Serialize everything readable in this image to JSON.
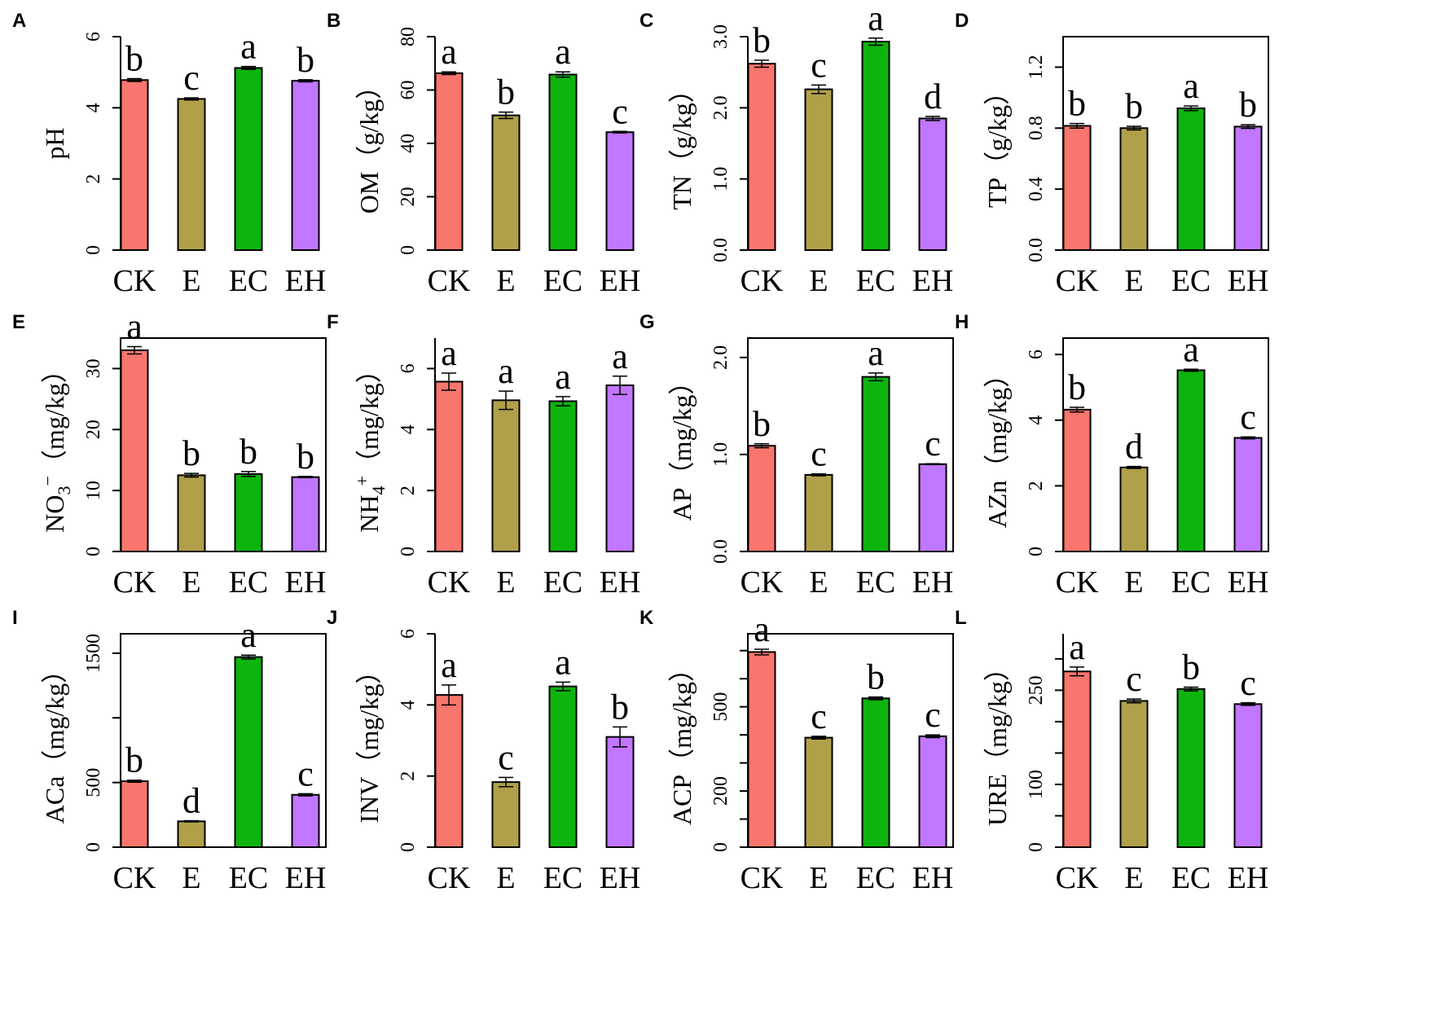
{
  "chart_data": [
    {
      "panel": "A",
      "type": "bar",
      "ylabel": "pH",
      "categories": [
        "CK",
        "E",
        "EC",
        "EH"
      ],
      "values": [
        4.78,
        4.25,
        5.12,
        4.76
      ],
      "errors": [
        0.04,
        0.03,
        0.04,
        0.03
      ],
      "sig": [
        "b",
        "c",
        "a",
        "b"
      ],
      "ylim": [
        0,
        6
      ],
      "yticks": [
        "0",
        "2",
        "4",
        "6"
      ],
      "tick_values": [
        0,
        2,
        4,
        6
      ]
    },
    {
      "panel": "B",
      "type": "bar",
      "ylabel": "OM（g/kg）",
      "categories": [
        "CK",
        "E",
        "EC",
        "EH"
      ],
      "values": [
        66.3,
        50.5,
        65.8,
        44.2
      ],
      "errors": [
        0.5,
        1.2,
        1.0,
        0.3
      ],
      "sig": [
        "a",
        "b",
        "a",
        "c"
      ],
      "ylim": [
        0,
        80
      ],
      "yticks": [
        "0",
        "20",
        "40",
        "60",
        "80"
      ],
      "tick_values": [
        0,
        20,
        40,
        60,
        80
      ]
    },
    {
      "panel": "C",
      "type": "bar",
      "ylabel": "TN（g/kg）",
      "categories": [
        "CK",
        "E",
        "EC",
        "EH"
      ],
      "values": [
        2.62,
        2.26,
        2.93,
        1.85
      ],
      "errors": [
        0.05,
        0.06,
        0.05,
        0.03
      ],
      "sig": [
        "b",
        "c",
        "a",
        "d"
      ],
      "ylim": [
        0,
        3.0
      ],
      "yticks": [
        "0.0",
        "1.0",
        "2.0",
        "3.0"
      ],
      "tick_values": [
        0,
        1,
        2,
        3
      ]
    },
    {
      "panel": "D",
      "type": "bar",
      "ylabel": "TP（g/kg）",
      "categories": [
        "CK",
        "E",
        "EC",
        "EH"
      ],
      "values": [
        0.815,
        0.8,
        0.93,
        0.81
      ],
      "errors": [
        0.015,
        0.012,
        0.015,
        0.012
      ],
      "sig": [
        "b",
        "b",
        "a",
        "b"
      ],
      "ylim": [
        0,
        1.4
      ],
      "yticks": [
        "0.0",
        "0.4",
        "0.8",
        "1.2"
      ],
      "tick_values": [
        0,
        0.4,
        0.8,
        1.2
      ]
    },
    {
      "panel": "E",
      "type": "bar",
      "ylabel": "NO3−（mg/kg）",
      "ylabel_main": "NO",
      "ylabel_sub": "3",
      "ylabel_sup": "−",
      "ylabel_unit": "（mg/kg）",
      "categories": [
        "CK",
        "E",
        "EC",
        "EH"
      ],
      "values": [
        33.0,
        12.5,
        12.7,
        12.2
      ],
      "errors": [
        0.6,
        0.3,
        0.4,
        0.1
      ],
      "sig": [
        "a",
        "b",
        "b",
        "b"
      ],
      "ylim": [
        0,
        35
      ],
      "yticks": [
        "0",
        "10",
        "20",
        "30"
      ],
      "tick_values": [
        0,
        10,
        20,
        30
      ]
    },
    {
      "panel": "F",
      "type": "bar",
      "ylabel": "NH4+（mg/kg）",
      "ylabel_main": "NH",
      "ylabel_sub": "4",
      "ylabel_sup": "+",
      "ylabel_unit": "（mg/kg）",
      "categories": [
        "CK",
        "E",
        "EC",
        "EH"
      ],
      "values": [
        5.57,
        4.96,
        4.93,
        5.45
      ],
      "errors": [
        0.28,
        0.3,
        0.15,
        0.3
      ],
      "sig": [
        "a",
        "a",
        "a",
        "a"
      ],
      "ylim": [
        0,
        7
      ],
      "yticks": [
        "0",
        "2",
        "4",
        "6"
      ],
      "tick_values": [
        0,
        2,
        4,
        6
      ]
    },
    {
      "panel": "G",
      "type": "bar",
      "ylabel": "AP（mg/kg）",
      "categories": [
        "CK",
        "E",
        "EC",
        "EH"
      ],
      "values": [
        1.09,
        0.79,
        1.8,
        0.9
      ],
      "errors": [
        0.02,
        0.01,
        0.04,
        0.005
      ],
      "sig": [
        "b",
        "c",
        "a",
        "c"
      ],
      "ylim": [
        0,
        2.2
      ],
      "yticks": [
        "0.0",
        "1.0",
        "2.0"
      ],
      "tick_values": [
        0,
        1,
        2
      ]
    },
    {
      "panel": "H",
      "type": "bar",
      "ylabel": "AZn（mg/kg）",
      "categories": [
        "CK",
        "E",
        "EC",
        "EH"
      ],
      "values": [
        4.32,
        2.56,
        5.52,
        3.46
      ],
      "errors": [
        0.07,
        0.03,
        0.03,
        0.03
      ],
      "sig": [
        "b",
        "d",
        "a",
        "c"
      ],
      "ylim": [
        0,
        6.5
      ],
      "yticks": [
        "0",
        "2",
        "4",
        "6"
      ],
      "tick_values": [
        0,
        2,
        4,
        6
      ]
    },
    {
      "panel": "I",
      "type": "bar",
      "ylabel": "ACa（mg/kg）",
      "categories": [
        "CK",
        "E",
        "EC",
        "EH"
      ],
      "values": [
        510,
        200,
        1470,
        405
      ],
      "errors": [
        8,
        5,
        15,
        8
      ],
      "sig": [
        "b",
        "d",
        "a",
        "c"
      ],
      "ylim": [
        0,
        1650
      ],
      "yticks": [
        "0",
        "500",
        "1500"
      ],
      "tick_values": [
        0,
        500,
        1000,
        1500
      ]
    },
    {
      "panel": "J",
      "type": "bar",
      "ylabel": "INV（mg/kg）",
      "categories": [
        "CK",
        "E",
        "EC",
        "EH"
      ],
      "values": [
        4.28,
        1.83,
        4.52,
        3.1
      ],
      "errors": [
        0.28,
        0.13,
        0.12,
        0.28
      ],
      "sig": [
        "a",
        "c",
        "a",
        "b"
      ],
      "ylim": [
        0,
        6
      ],
      "yticks": [
        "0",
        "2",
        "4",
        "6"
      ],
      "tick_values": [
        0,
        2,
        4,
        6
      ]
    },
    {
      "panel": "K",
      "type": "bar",
      "ylabel": "ACP（mg/kg）",
      "categories": [
        "CK",
        "E",
        "EC",
        "EH"
      ],
      "values": [
        695,
        390,
        530,
        395
      ],
      "errors": [
        10,
        5,
        5,
        5
      ],
      "sig": [
        "a",
        "c",
        "b",
        "c"
      ],
      "ylim": [
        0,
        760
      ],
      "yticks": [
        "0",
        "200",
        "500"
      ],
      "tick_values": [
        0,
        100,
        200,
        300,
        400,
        500,
        600,
        700
      ]
    },
    {
      "panel": "L",
      "type": "bar",
      "ylabel": "URE（mg/kg）",
      "categories": [
        "CK",
        "E",
        "EC",
        "EH"
      ],
      "values": [
        280,
        233,
        252,
        228
      ],
      "errors": [
        7,
        3,
        3,
        2
      ],
      "sig": [
        "a",
        "c",
        "b",
        "c"
      ],
      "ylim": [
        0,
        340
      ],
      "yticks": [
        "0",
        "100",
        "250"
      ],
      "tick_values": [
        0,
        50,
        100,
        150,
        200,
        250,
        300
      ]
    }
  ],
  "colors": {
    "CK": "#f8766d",
    "E": "#b1a04a",
    "EC": "#0db40d",
    "EH": "#c177ff",
    "axis": "#000000"
  }
}
